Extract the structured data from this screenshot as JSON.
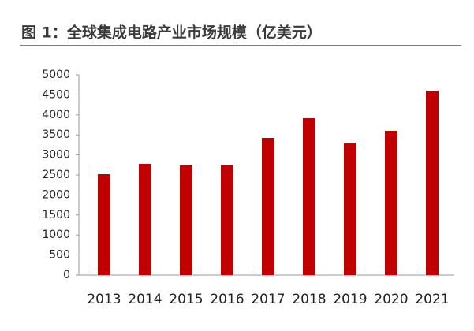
{
  "chart_data": {
    "type": "bar",
    "title": "图 1：全球集成电路产业市场规模（亿美元）",
    "categories": [
      "2013",
      "2014",
      "2015",
      "2016",
      "2017",
      "2018",
      "2019",
      "2020",
      "2021"
    ],
    "values": [
      2520,
      2776,
      2736,
      2756,
      3425,
      3917,
      3287,
      3602,
      4606
    ],
    "color": "#c00000",
    "ylim": [
      0,
      5000
    ],
    "yticks": [
      0,
      500,
      1000,
      1500,
      2000,
      2500,
      3000,
      3500,
      4000,
      4500,
      5000
    ],
    "grid": false
  }
}
